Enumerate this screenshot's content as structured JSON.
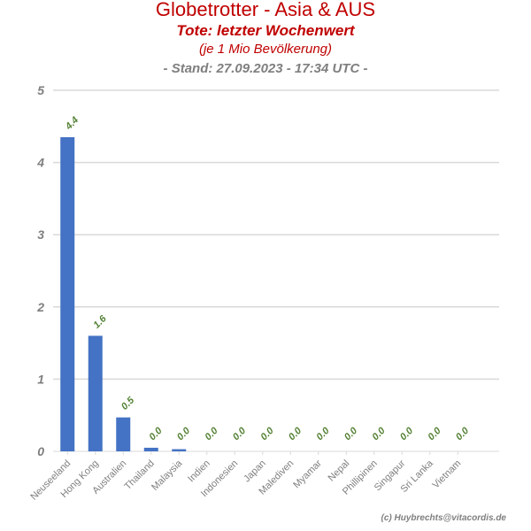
{
  "header": {
    "title": "Globetrotter - Asia & AUS",
    "subtitle": "Tote: letzter Wochenwert",
    "unit_note": "(je 1 Mio Bevölkerung)",
    "stand": "- Stand: 27.09.2023 - 17:34 UTC -"
  },
  "footer": {
    "credit": "(c) Huybrechts@vitacordis.de"
  },
  "colors": {
    "bar": "#4472c4",
    "label": "#548235",
    "title": "#c00000",
    "grid": "#d9d9d9",
    "axis_text": "#7f7f7f"
  },
  "chart_data": {
    "type": "bar",
    "categories": [
      "Neuseeland",
      "Hong Kong",
      "Australien",
      "Thailand",
      "Malaysia",
      "Indien",
      "Indonesien",
      "Japan",
      "Malediven",
      "Myamar",
      "Nepal",
      "Phillipinen",
      "Singapur",
      "Sri Lanka",
      "Vietnam"
    ],
    "values": [
      4.35,
      1.6,
      0.47,
      0.05,
      0.03,
      0.0,
      0.0,
      0.0,
      0.0,
      0.0,
      0.0,
      0.0,
      0.0,
      0.0,
      0.0
    ],
    "data_labels": [
      "4.4",
      "1.6",
      "0.5",
      "0.0",
      "0.0",
      "0.0",
      "0.0",
      "0.0",
      "0.0",
      "0.0",
      "0.0",
      "0.0",
      "0.0",
      "0.0",
      "0.0"
    ],
    "ylim": [
      0,
      5
    ],
    "yticks": [
      "0",
      "1",
      "2",
      "3",
      "4",
      "5"
    ],
    "grid": true,
    "legend": "none"
  }
}
